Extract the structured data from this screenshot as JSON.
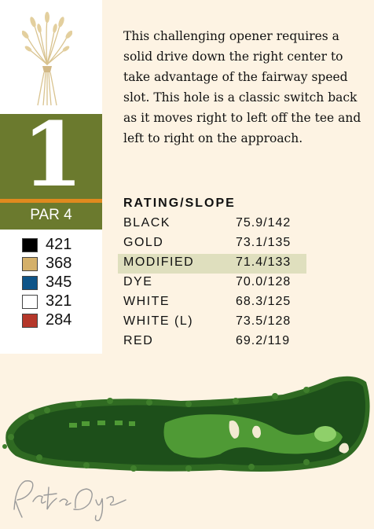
{
  "hole": {
    "number": "1",
    "par": "PAR 4"
  },
  "yardages": [
    {
      "tee": "black",
      "color": "#000000",
      "yards": "421"
    },
    {
      "tee": "gold",
      "color": "#d4b06a",
      "yards": "368"
    },
    {
      "tee": "blue",
      "color": "#0e5488",
      "yards": "345"
    },
    {
      "tee": "white",
      "color": "#ffffff",
      "yards": "321"
    },
    {
      "tee": "red",
      "color": "#b5372a",
      "yards": "284"
    }
  ],
  "description": "This challenging opener requires a solid drive down the right center to take advantage of the fairway speed slot. This hole is a classic switch back as it moves right to left off the tee and left to right on the approach.",
  "rating_slope": {
    "title": "RATING/SLOPE",
    "rows": [
      {
        "tee": "BLACK",
        "value": "75.9/142",
        "highlighted": false
      },
      {
        "tee": "GOLD",
        "value": "73.1/135",
        "highlighted": false
      },
      {
        "tee": "MODIFIED",
        "value": "71.4/133",
        "highlighted": true
      },
      {
        "tee": "DYE",
        "value": "70.0/128",
        "highlighted": false
      },
      {
        "tee": "WHITE",
        "value": "68.3/125",
        "highlighted": false
      },
      {
        "tee": "WHITE (L)",
        "value": "73.5/128",
        "highlighted": false
      },
      {
        "tee": "RED",
        "value": "69.2/119",
        "highlighted": false
      }
    ]
  },
  "colors": {
    "background": "#fdf3e3",
    "hole_box": "#6b7a2e",
    "accent_strip": "#e08a1e",
    "highlight_row": "#dfdfbe"
  },
  "icons": {
    "logo": "wheat-sheaf-logo",
    "signature": "designer-signature"
  }
}
